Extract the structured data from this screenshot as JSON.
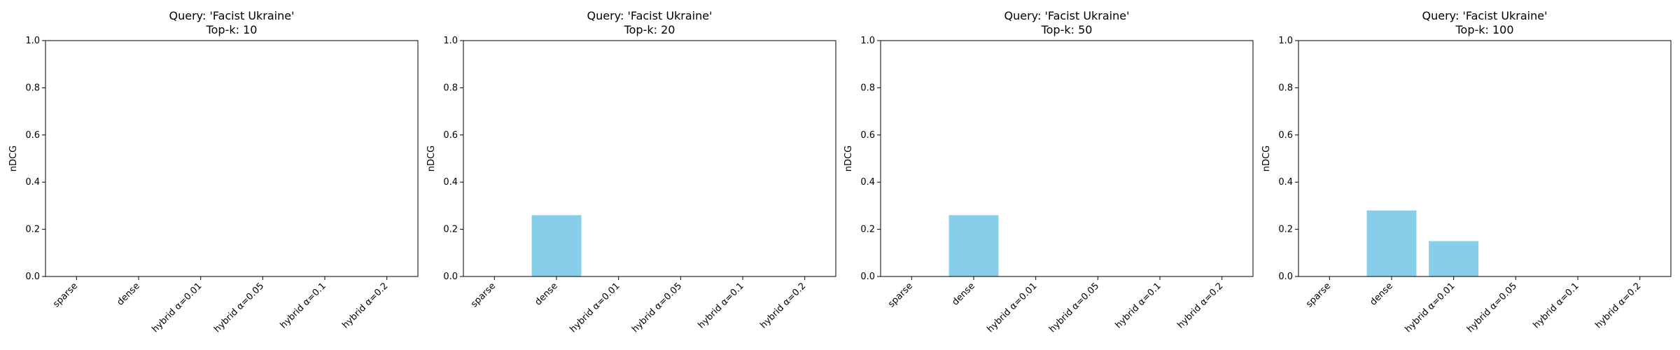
{
  "chart_data": [
    {
      "type": "bar",
      "title": "Query: 'Facist Ukraine'\nTop-k: 10",
      "ylabel": "nDCG",
      "xlabel": "",
      "ylim": [
        0,
        1.0
      ],
      "yticks": [
        "0.0",
        "0.2",
        "0.4",
        "0.6",
        "0.8",
        "1.0"
      ],
      "categories": [
        "sparse",
        "dense",
        "hybrid α=0.01",
        "hybrid α=0.05",
        "hybrid α=0.1",
        "hybrid α=0.2"
      ],
      "values": [
        0,
        0,
        0,
        0,
        0,
        0
      ],
      "color": "#87ceeb"
    },
    {
      "type": "bar",
      "title": "Query: 'Facist Ukraine'\nTop-k: 20",
      "ylabel": "nDCG",
      "xlabel": "",
      "ylim": [
        0,
        1.0
      ],
      "yticks": [
        "0.0",
        "0.2",
        "0.4",
        "0.6",
        "0.8",
        "1.0"
      ],
      "categories": [
        "sparse",
        "dense",
        "hybrid α=0.01",
        "hybrid α=0.05",
        "hybrid α=0.1",
        "hybrid α=0.2"
      ],
      "values": [
        0,
        0.26,
        0,
        0,
        0,
        0
      ],
      "color": "#87ceeb"
    },
    {
      "type": "bar",
      "title": "Query: 'Facist Ukraine'\nTop-k: 50",
      "ylabel": "nDCG",
      "xlabel": "",
      "ylim": [
        0,
        1.0
      ],
      "yticks": [
        "0.0",
        "0.2",
        "0.4",
        "0.6",
        "0.8",
        "1.0"
      ],
      "categories": [
        "sparse",
        "dense",
        "hybrid α=0.01",
        "hybrid α=0.05",
        "hybrid α=0.1",
        "hybrid α=0.2"
      ],
      "values": [
        0,
        0.26,
        0,
        0,
        0,
        0
      ],
      "color": "#87ceeb"
    },
    {
      "type": "bar",
      "title": "Query: 'Facist Ukraine'\nTop-k: 100",
      "ylabel": "nDCG",
      "xlabel": "",
      "ylim": [
        0,
        1.0
      ],
      "yticks": [
        "0.0",
        "0.2",
        "0.4",
        "0.6",
        "0.8",
        "1.0"
      ],
      "categories": [
        "sparse",
        "dense",
        "hybrid α=0.01",
        "hybrid α=0.05",
        "hybrid α=0.1",
        "hybrid α=0.2"
      ],
      "values": [
        0,
        0.28,
        0.15,
        0,
        0,
        0
      ],
      "color": "#87ceeb"
    }
  ]
}
